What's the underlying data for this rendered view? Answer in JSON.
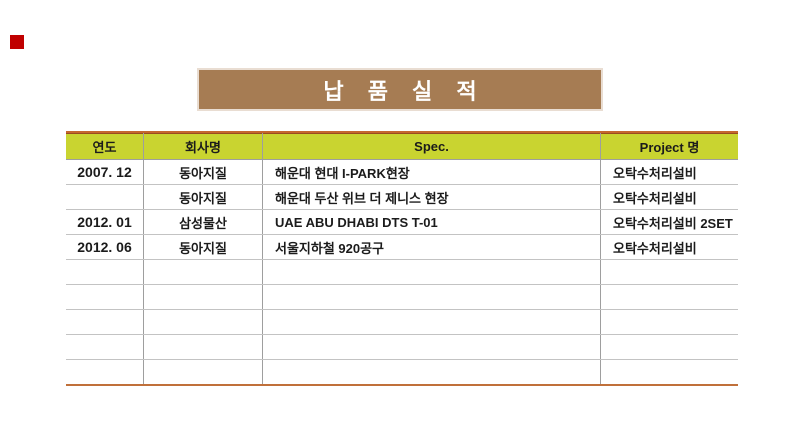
{
  "page": {
    "background": "#ffffff"
  },
  "marker": {
    "color": "#c00000"
  },
  "title": {
    "text": "납 품 실 적",
    "background": "#a67c53",
    "border_color": "#e9ddd2",
    "text_color": "#ffffff"
  },
  "table": {
    "header": {
      "background": "#c9d430",
      "top_border_color": "#c5672e",
      "columns": [
        "연도",
        "회사명",
        "Spec.",
        "Project 명"
      ]
    },
    "bottom_border_color": "#c0703a",
    "row_border_color": "#c3c3c3",
    "column_border_color": "#9e9e9e",
    "rows": [
      [
        "2007. 12",
        "동아지질",
        "해운대 현대 I-PARK현장",
        "오탁수처리설비"
      ],
      [
        "",
        "동아지질",
        "해운대 두산 위브 더 제니스 현장",
        "오탁수처리설비"
      ],
      [
        "2012. 01",
        "삼성물산",
        "UAE ABU DHABI DTS T-01",
        "오탁수처리설비 2SET"
      ],
      [
        "2012. 06",
        "동아지질",
        "서울지하철 920공구",
        "오탁수처리설비"
      ],
      [
        "",
        "",
        "",
        ""
      ],
      [
        "",
        "",
        "",
        ""
      ],
      [
        "",
        "",
        "",
        ""
      ],
      [
        "",
        "",
        "",
        ""
      ],
      [
        "",
        "",
        "",
        ""
      ]
    ]
  }
}
